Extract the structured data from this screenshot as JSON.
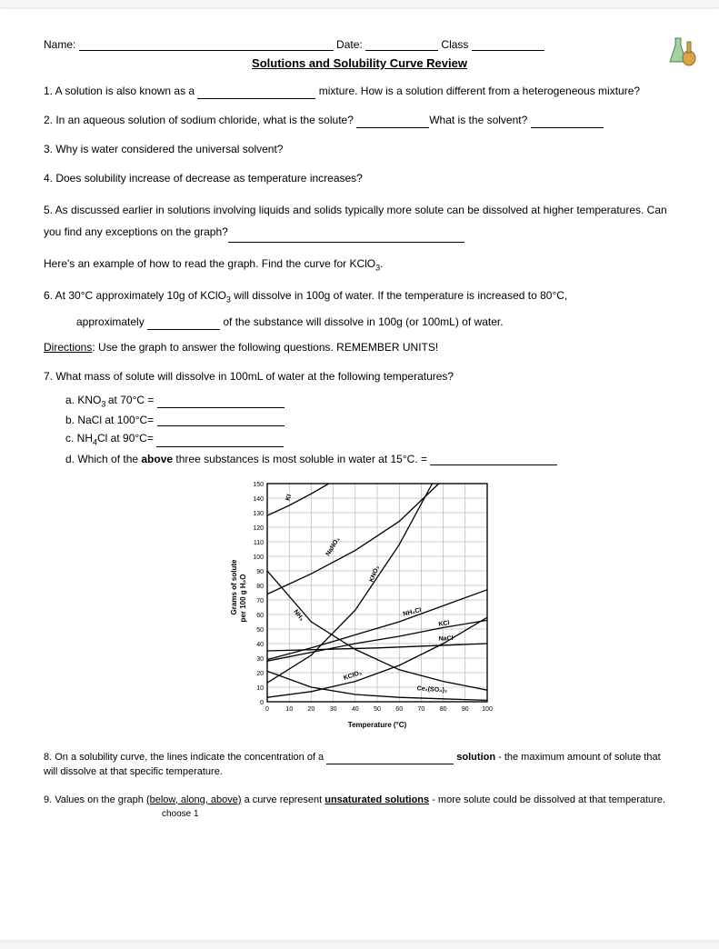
{
  "header": {
    "name_label": "Name:",
    "date_label": "Date:",
    "class_label": "Class"
  },
  "title": "Solutions and Solubility Curve Review",
  "q1a": "1. A solution is also known as a ",
  "q1b": " mixture. How is a solution different from a heterogeneous mixture?",
  "q2a": "2. In an aqueous solution of sodium chloride, what is the solute? ",
  "q2b": "What is the solvent? ",
  "q3": "3. Why is water considered the universal solvent?",
  "q4": "4. Does solubility increase of decrease as temperature increases?",
  "q5a": "5. As discussed earlier in solutions involving liquids and solids typically more solute can be dissolved at higher temperatures. Can you find any exceptions on the graph?",
  "ex": "Here's an example of how to read the graph. Find the curve for KClO",
  "ex_sub": "3",
  "ex_end": ".",
  "q6a": "6. At 30°C approximately 10g of KClO",
  "q6sub": "3",
  "q6b": " will dissolve in 100g of water. If the temperature is increased to 80°C,",
  "q6c": "approximately ",
  "q6d": " of the substance will dissolve in 100g (or 100mL) of water.",
  "dir_label": "Directions",
  "dir_body": ":  Use the graph to answer the following questions.  REMEMBER UNITS!",
  "q7": "7. What mass of solute will dissolve in 100mL of water at the following temperatures?",
  "q7a_a": "a. KNO",
  "q7a_sub": "3 ",
  "q7a_b": "at 70°C = ",
  "q7b": "b. NaCl at 100°C= ",
  "q7c_a": "c. NH",
  "q7c_sub": "4",
  "q7c_b": "Cl at 90°C= ",
  "q7d_a": "d. Which of the ",
  "q7d_above": "above",
  "q7d_b": " three substances is most soluble in water at 15°C. = ",
  "q8a": "8. On a solubility curve, the lines indicate the concentration of a ",
  "q8b": " solution",
  "q8c": " - the maximum amount of solute that will dissolve at that specific temperature.",
  "q9a": "9. Values on the graph ",
  "q9paren": "(below, along, above)",
  "q9b": " a curve represent ",
  "q9uns": "unsaturated solutions",
  "q9c": " - more solute could be dissolved at that temperature.",
  "q9choose": "choose 1",
  "chart": {
    "xlabel": "Temperature (°C)",
    "ylabel_top": "Grams of solute",
    "ylabel_bot": "per 100 g H₂O",
    "x_ticks": [
      0,
      10,
      20,
      30,
      40,
      50,
      60,
      70,
      80,
      90,
      100
    ],
    "y_ticks": [
      0,
      10,
      20,
      30,
      40,
      50,
      60,
      70,
      80,
      90,
      100,
      110,
      120,
      130,
      140,
      150
    ],
    "xlim": [
      0,
      100
    ],
    "ylim": [
      0,
      150
    ],
    "grid_color": "#999",
    "axis_color": "#000",
    "line_color": "#000",
    "background": "#ffffff",
    "tick_fontsize": 7,
    "label_fontsize": 8,
    "curve_fontsize": 7,
    "series": {
      "KI": {
        "label": "KI",
        "pts": [
          [
            0,
            128
          ],
          [
            10,
            135
          ],
          [
            20,
            143
          ],
          [
            28,
            150
          ]
        ]
      },
      "NaNO3": {
        "label": "NaNO₃",
        "pts": [
          [
            0,
            74
          ],
          [
            20,
            88
          ],
          [
            40,
            104
          ],
          [
            60,
            124
          ],
          [
            78,
            150
          ]
        ]
      },
      "KNO3": {
        "label": "KNO₃",
        "pts": [
          [
            0,
            13
          ],
          [
            20,
            32
          ],
          [
            40,
            63
          ],
          [
            60,
            108
          ],
          [
            75,
            150
          ]
        ]
      },
      "NH3": {
        "label": "NH₃",
        "pts": [
          [
            0,
            90
          ],
          [
            20,
            55
          ],
          [
            40,
            36
          ],
          [
            60,
            22
          ],
          [
            80,
            14
          ],
          [
            100,
            8
          ]
        ]
      },
      "NH4Cl": {
        "label": "NH₄Cl",
        "pts": [
          [
            0,
            29
          ],
          [
            20,
            37
          ],
          [
            40,
            46
          ],
          [
            60,
            55
          ],
          [
            80,
            66
          ],
          [
            100,
            77
          ]
        ]
      },
      "KCl": {
        "label": "KCl",
        "pts": [
          [
            0,
            28
          ],
          [
            20,
            34
          ],
          [
            40,
            40
          ],
          [
            60,
            45
          ],
          [
            80,
            51
          ],
          [
            100,
            56
          ]
        ]
      },
      "NaCl": {
        "label": "NaCl",
        "pts": [
          [
            0,
            35
          ],
          [
            50,
            37
          ],
          [
            100,
            40
          ]
        ]
      },
      "KClO3": {
        "label": "KClO₃",
        "pts": [
          [
            0,
            3
          ],
          [
            20,
            7
          ],
          [
            40,
            14
          ],
          [
            60,
            25
          ],
          [
            80,
            40
          ],
          [
            100,
            58
          ]
        ]
      },
      "Ce2SO4": {
        "label": "Ce₂(SO₄)₃",
        "pts": [
          [
            0,
            21
          ],
          [
            20,
            10
          ],
          [
            40,
            5
          ],
          [
            60,
            3
          ],
          [
            80,
            2
          ],
          [
            100,
            1
          ]
        ]
      }
    },
    "curve_labels": [
      {
        "key": "KI",
        "x": 10,
        "y": 138,
        "rot": -72
      },
      {
        "key": "NaNO3",
        "x": 28,
        "y": 100,
        "rot": -58
      },
      {
        "key": "KNO3",
        "x": 48,
        "y": 82,
        "rot": -68
      },
      {
        "key": "NH3",
        "x": 12,
        "y": 62,
        "rot": 52
      },
      {
        "key": "NH4Cl",
        "x": 62,
        "y": 59,
        "rot": -14
      },
      {
        "key": "KCl",
        "x": 78,
        "y": 52,
        "rot": -8
      },
      {
        "key": "NaCl",
        "x": 78,
        "y": 42,
        "rot": -3
      },
      {
        "key": "KClO3",
        "x": 35,
        "y": 15,
        "rot": -18
      },
      {
        "key": "Ce2SO4",
        "x": 68,
        "y": 8,
        "rot": 4
      }
    ]
  }
}
